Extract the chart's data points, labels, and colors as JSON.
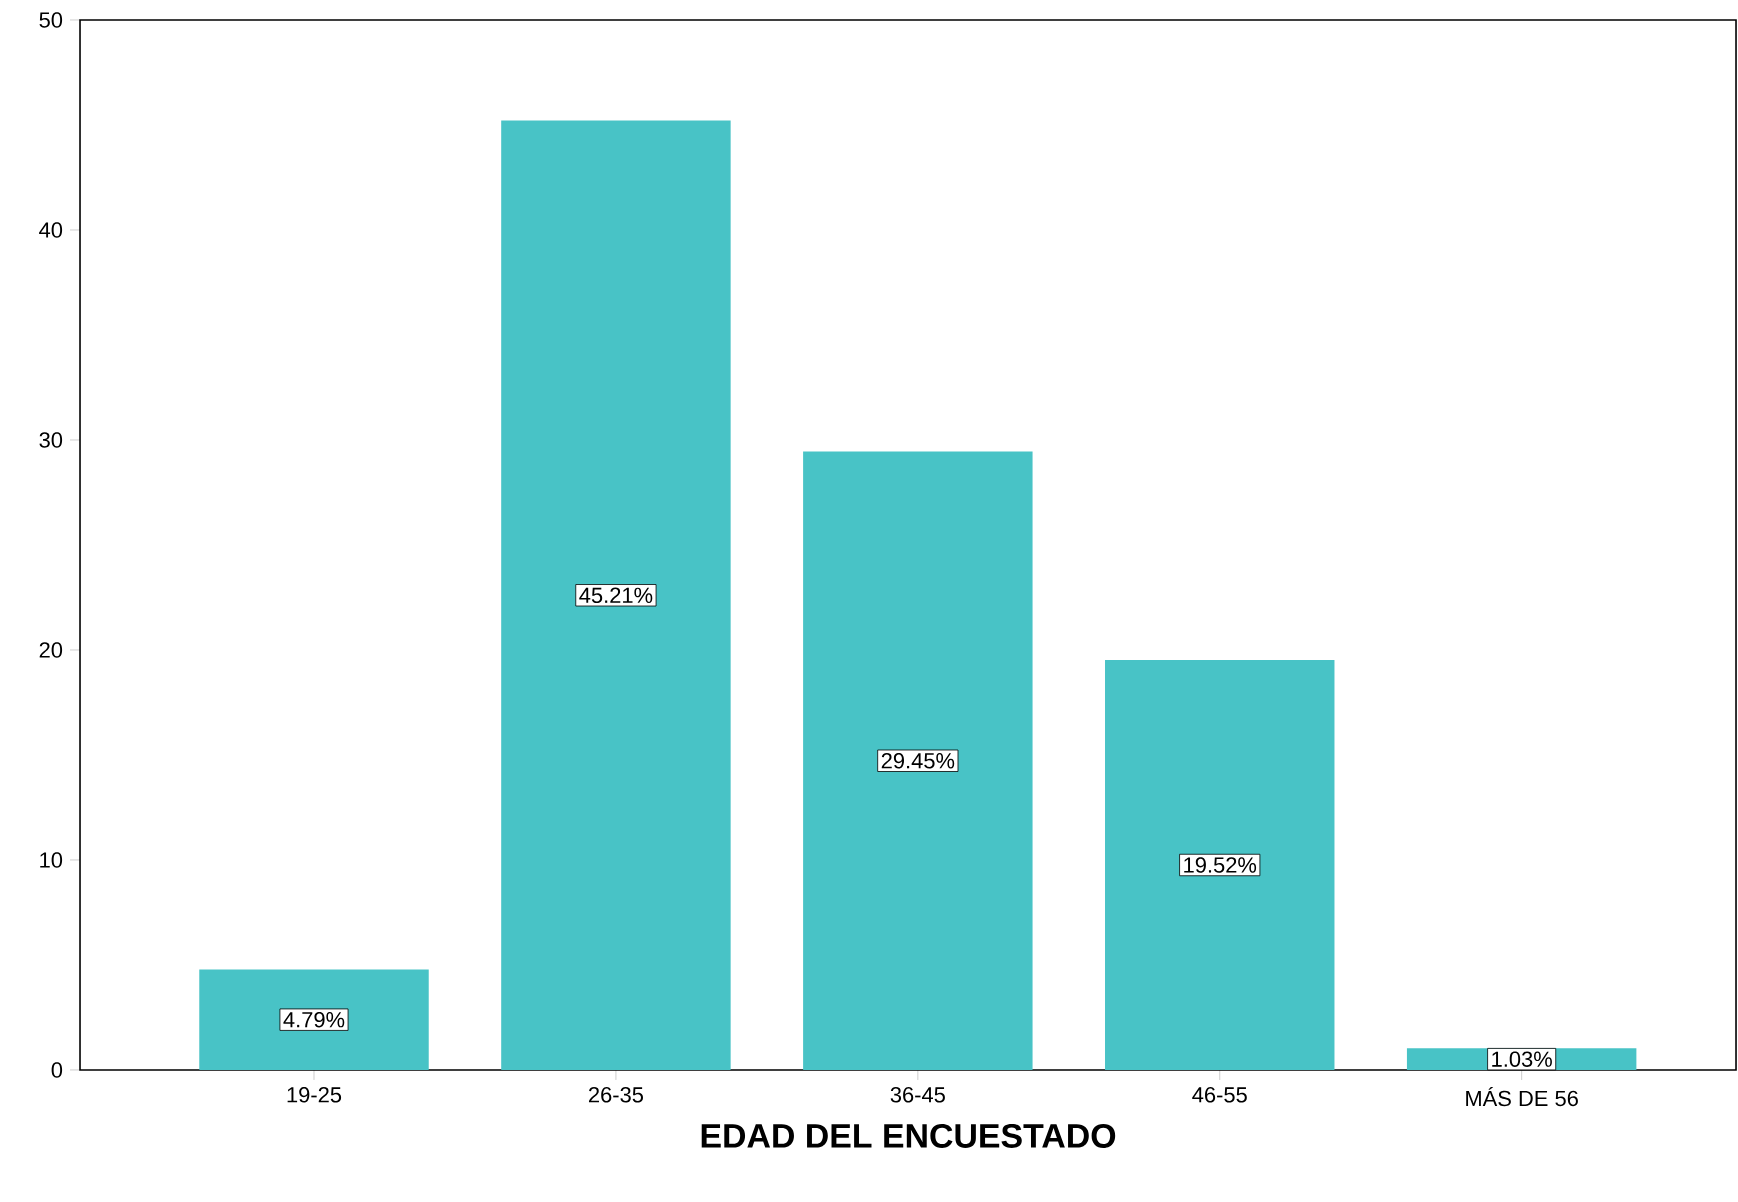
{
  "chart_data": {
    "type": "bar",
    "xlabel": "EDAD DEL ENCUESTADO",
    "categories": [
      "19-25",
      "26-35",
      "36-45",
      "46-55",
      "MÁS DE 56"
    ],
    "values": [
      4.79,
      45.21,
      29.45,
      19.52,
      1.03
    ],
    "value_labels": [
      "4.79%",
      "45.21%",
      "29.45%",
      "19.52%",
      "1.03%"
    ],
    "color": "#48c3c6",
    "ylim": [
      0,
      50
    ],
    "yticks": [
      0,
      10,
      20,
      30,
      40,
      50
    ]
  }
}
